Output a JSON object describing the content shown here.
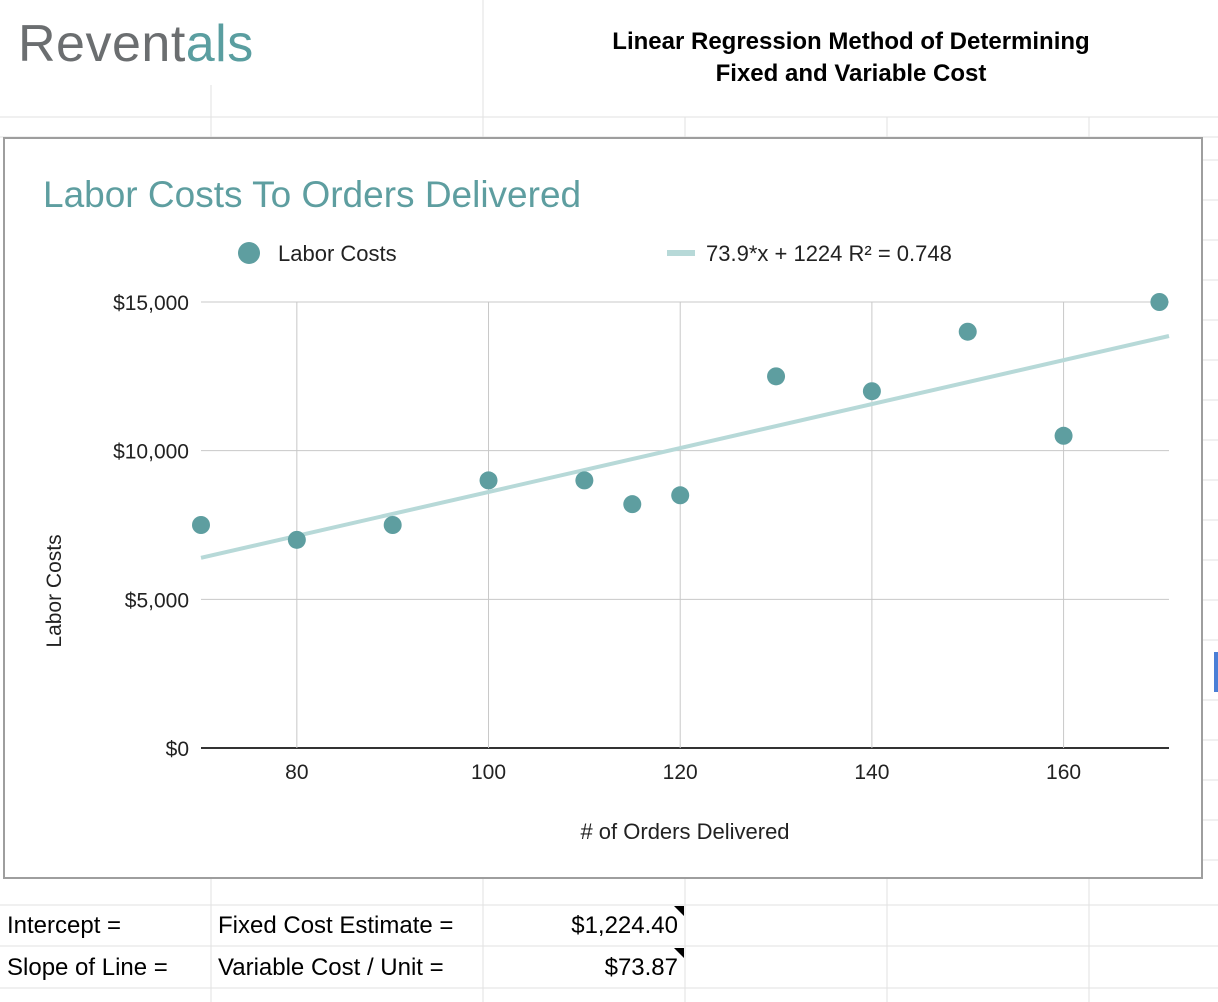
{
  "logo": {
    "part1": "Revent",
    "part2": "als"
  },
  "sheet_title": "Linear Regression Method of Determining\nFixed and Variable Cost",
  "colors": {
    "point": "#5e9ea0",
    "trendline": "#b7d9d8",
    "title": "#5e9ea0",
    "gridline": "#c8c8c8",
    "logo_gray": "#6b6e70",
    "logo_teal": "#5a9ea0"
  },
  "chart_data": {
    "type": "scatter",
    "title": "Labor Costs To Orders Delivered",
    "xlabel": "# of Orders Delivered",
    "ylabel": "Labor Costs",
    "xlim": [
      70,
      171
    ],
    "ylim": [
      0,
      15000
    ],
    "xticks": [
      80,
      100,
      120,
      140,
      160
    ],
    "yticks": [
      0,
      5000,
      10000,
      15000
    ],
    "ytick_labels": [
      "$0",
      "$5,000",
      "$10,000",
      "$15,000"
    ],
    "grid": true,
    "legend_position": "top",
    "series": [
      {
        "name": "Labor Costs",
        "x": [
          70,
          80,
          90,
          100,
          110,
          115,
          120,
          130,
          140,
          150,
          160,
          170
        ],
        "y": [
          7500,
          7000,
          7500,
          9000,
          9000,
          8200,
          8500,
          12500,
          12000,
          14000,
          10500,
          15000
        ]
      }
    ],
    "trendline": {
      "label": "73.9*x + 1224 R² = 0.748",
      "slope": 73.87,
      "intercept": 1224.4
    }
  },
  "table": {
    "rows": [
      {
        "label": "Intercept =",
        "desc": "Fixed Cost Estimate =",
        "value": "$1,224.40"
      },
      {
        "label": "Slope of Line =",
        "desc": "Variable Cost / Unit =",
        "value": "$73.87"
      }
    ]
  }
}
